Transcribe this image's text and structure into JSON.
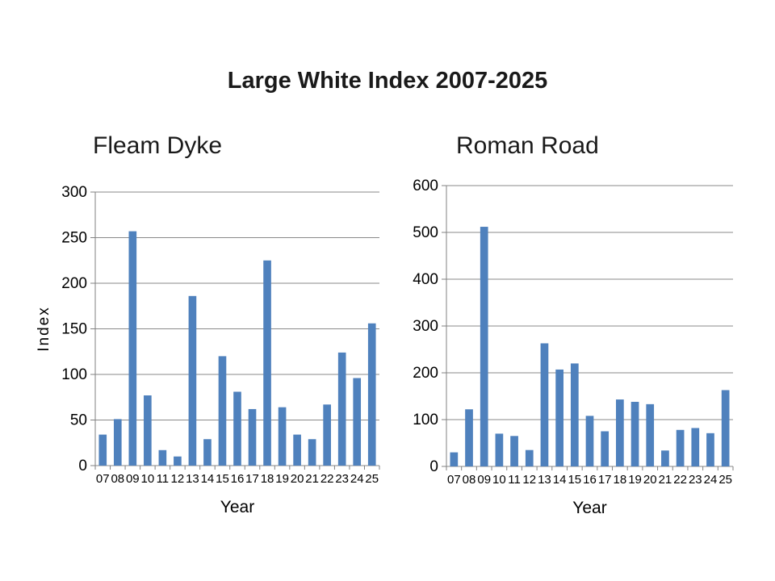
{
  "page": {
    "title": "Large White Index 2007-2025"
  },
  "colors": {
    "bar": "#4F81BD",
    "grid": "#898989",
    "axis": "#808080",
    "text": "#000000",
    "title_text": "#1a1a1a"
  },
  "chart_data": [
    {
      "type": "bar",
      "title": "Fleam Dyke",
      "xlabel": "Year",
      "ylabel": "Index",
      "categories": [
        "07",
        "08",
        "09",
        "10",
        "11",
        "12",
        "13",
        "14",
        "15",
        "16",
        "17",
        "18",
        "19",
        "20",
        "21",
        "22",
        "23",
        "24",
        "25"
      ],
      "values": [
        34,
        51,
        257,
        77,
        17,
        10,
        186,
        29,
        120,
        81,
        62,
        225,
        64,
        34,
        29,
        67,
        124,
        96,
        156
      ],
      "ylim": [
        0,
        300
      ],
      "yticks": [
        0,
        50,
        100,
        150,
        200,
        250,
        300
      ],
      "grid": true,
      "legend_position": "none",
      "bar_color": "#4F81BD"
    },
    {
      "type": "bar",
      "title": "Roman Road",
      "xlabel": "Year",
      "ylabel": "",
      "categories": [
        "07",
        "08",
        "09",
        "10",
        "11",
        "12",
        "13",
        "14",
        "15",
        "16",
        "17",
        "18",
        "19",
        "20",
        "21",
        "22",
        "23",
        "24",
        "25"
      ],
      "values": [
        30,
        122,
        512,
        70,
        65,
        35,
        263,
        207,
        220,
        108,
        75,
        143,
        138,
        133,
        34,
        78,
        82,
        71,
        163
      ],
      "ylim": [
        0,
        600
      ],
      "yticks": [
        0,
        100,
        200,
        300,
        400,
        500,
        600
      ],
      "grid": true,
      "legend_position": "none",
      "bar_color": "#4F81BD"
    }
  ]
}
